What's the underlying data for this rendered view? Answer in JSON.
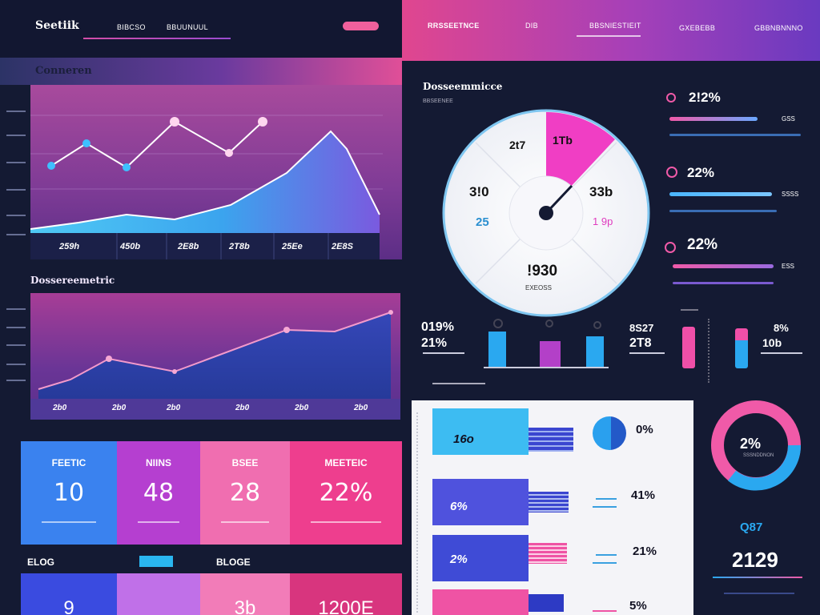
{
  "header": {
    "brand": "Seetiik",
    "nav_left": [
      "BIBCSO",
      "BBUUNUUL"
    ],
    "nav_right": [
      "RRSSEETNCE",
      "DIB",
      "BBSNIESTIEIT",
      "GXEBEBB",
      "GBBNBNNNO"
    ]
  },
  "conversion": {
    "title": "Conneren",
    "x_ticks": [
      "259h",
      "450b",
      "2E8b",
      "2T8b",
      "25Ee",
      "2E8S"
    ]
  },
  "performance": {
    "title": "Dossereemetric",
    "x_ticks": [
      "2b0",
      "2b0",
      "2b0",
      "2b0",
      "2b0",
      "2b0"
    ]
  },
  "gauge": {
    "title": "Dosseemmicce",
    "subtitle": "BBSEENEE",
    "labels": {
      "top_left": "2t7",
      "top_right": "1Tb",
      "left": "3!0",
      "right": "33b",
      "left_small": "25",
      "right_small": "1 9p",
      "bottom": "!930",
      "bottom_sub": "EXEOSS"
    },
    "needle_value": 0.6
  },
  "metrics_right": [
    {
      "label": "2!2%",
      "tag": "GSS"
    },
    {
      "label": "22%",
      "tag": "SSSS"
    },
    {
      "label": "22%",
      "tag": "ESS"
    }
  ],
  "mini_bars": {
    "left_top": "019%",
    "left_bottom": "21%",
    "mid_top": "8S27",
    "mid_bottom": "2T8",
    "right_top": "8%",
    "right_bottom": "10b"
  },
  "tiles": [
    {
      "label": "FEETIC",
      "value": "10"
    },
    {
      "label": "NIINS",
      "value": "48"
    },
    {
      "label": "BSEE",
      "value": "28"
    },
    {
      "label": "MEETEIC",
      "value": "22%"
    }
  ],
  "tiles_lower_labels": [
    "ELOG",
    "BLOGE"
  ],
  "tiles_lower": [
    "9",
    "",
    "3b",
    "1200E"
  ],
  "report": {
    "bar_labels": [
      "16o",
      "6%",
      "2%",
      ""
    ],
    "pcts": [
      "0%",
      "41%",
      "21%",
      "5%"
    ]
  },
  "donut": {
    "value": "2%",
    "sub": "SSSNDDNON"
  },
  "right_bottom": {
    "top": "Q87",
    "value": "2129"
  },
  "colors": {
    "pink": "#f052a8",
    "blue": "#3aa9f0",
    "purple": "#9a3fd0",
    "navy": "#141a33"
  }
}
